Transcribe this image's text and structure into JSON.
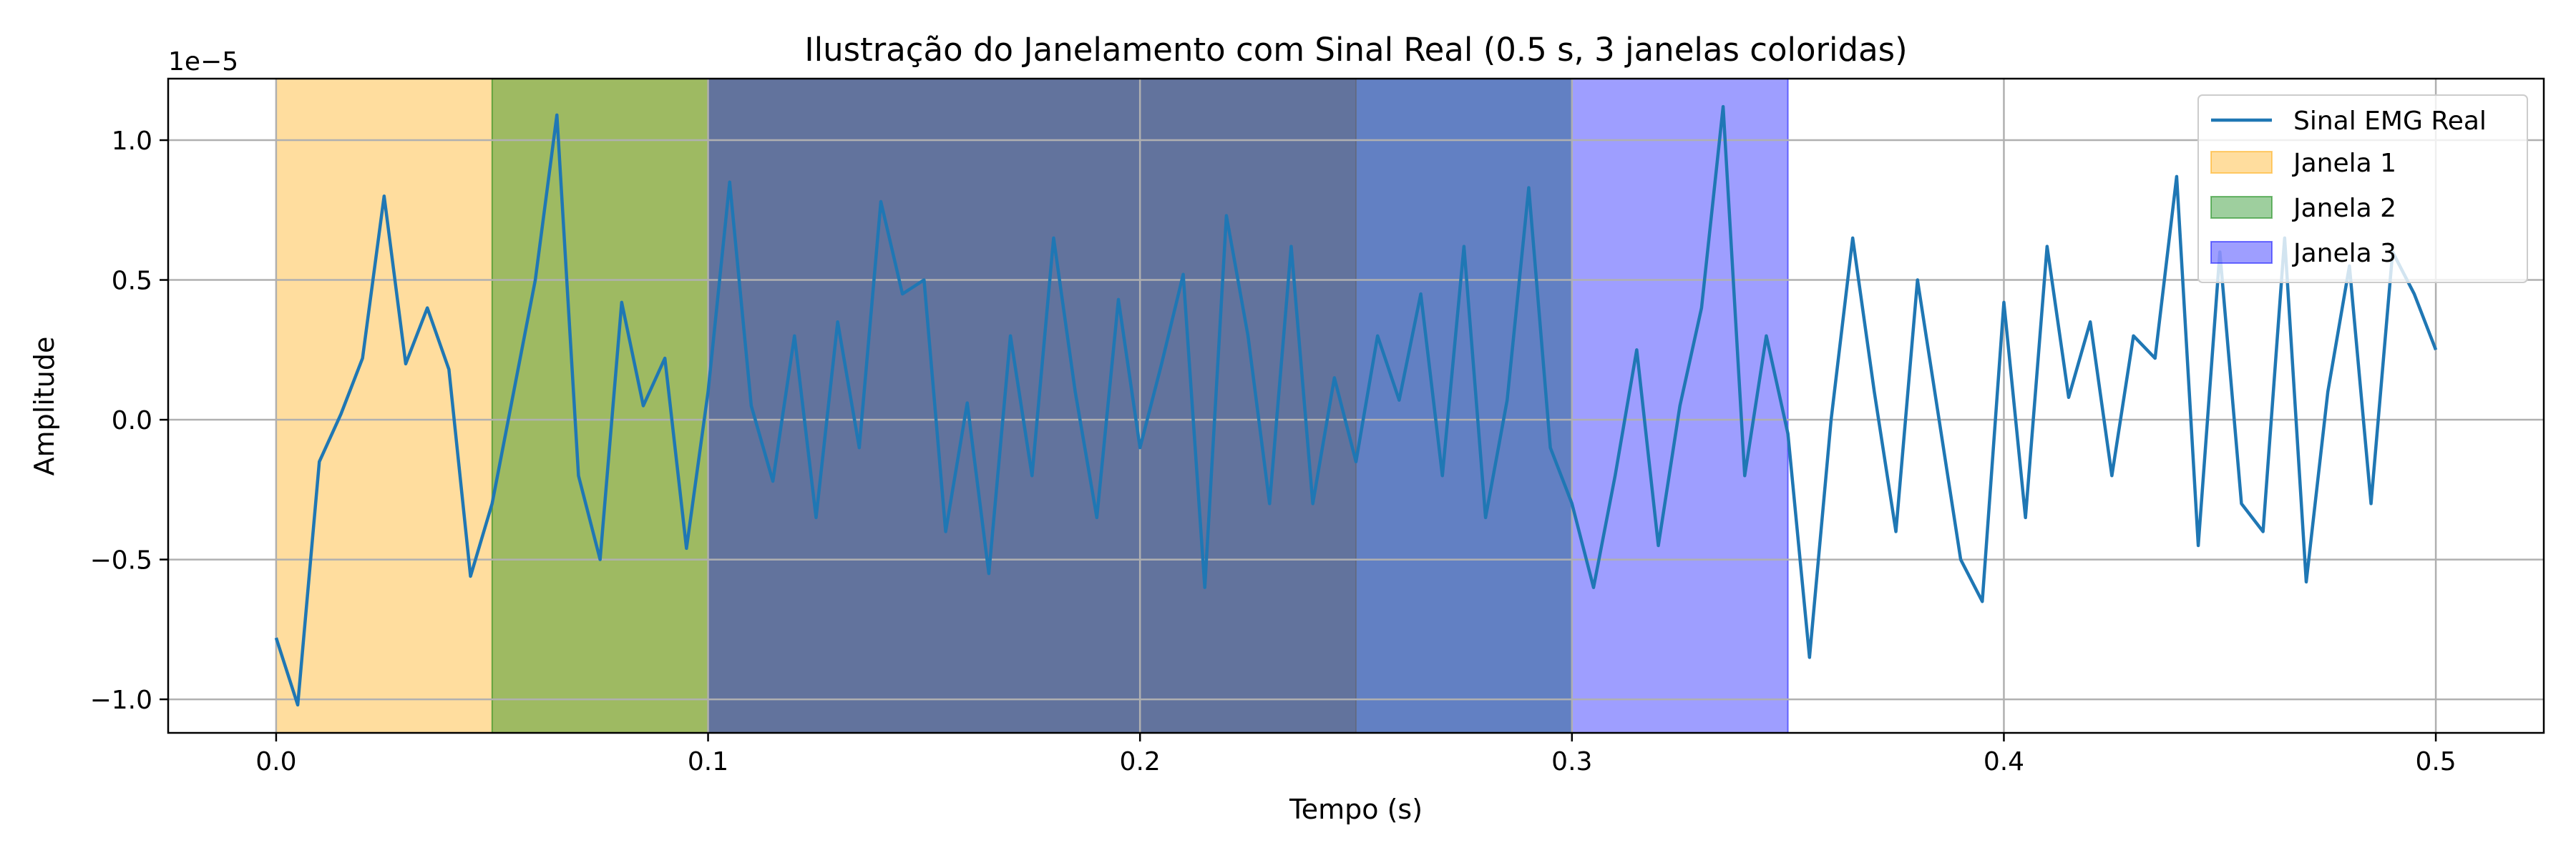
{
  "chart_data": {
    "type": "line",
    "title": "Ilustração do Janelamento com Sinal Real (0.5 s, 3 janelas coloridas)",
    "xlabel": "Tempo (s)",
    "ylabel": "Amplitude",
    "y_offset_label": "1e−5",
    "xlim": [
      -0.025,
      0.525
    ],
    "ylim": [
      -1.12,
      1.22
    ],
    "y_scale_factor": 1e-05,
    "x_ticks": [
      0.0,
      0.1,
      0.2,
      0.3,
      0.4,
      0.5
    ],
    "x_tick_labels": [
      "0.0",
      "0.1",
      "0.2",
      "0.3",
      "0.4",
      "0.5"
    ],
    "y_ticks": [
      -1.0,
      -0.5,
      0.0,
      0.5,
      1.0
    ],
    "y_tick_labels": [
      "−1.0",
      "−0.5",
      "0.0",
      "0.5",
      "1.0"
    ],
    "grid": true,
    "legend_position": "top-right",
    "legend": [
      "Sinal EMG Real",
      "Janela 1",
      "Janela 2",
      "Janela 3"
    ],
    "windows": [
      {
        "name": "Janela 1",
        "color": "#ffa500",
        "x": [
          0.0,
          0.25
        ]
      },
      {
        "name": "Janela 2",
        "color": "#008000",
        "x": [
          0.05,
          0.3
        ]
      },
      {
        "name": "Janela 3",
        "color": "#0000ff",
        "x": [
          0.1,
          0.35
        ]
      }
    ],
    "series": [
      {
        "name": "Sinal EMG Real",
        "color": "#1f77b4",
        "x": [
          0.0,
          0.005,
          0.01,
          0.015,
          0.02,
          0.025,
          0.03,
          0.035,
          0.04,
          0.045,
          0.05,
          0.055,
          0.06,
          0.065,
          0.07,
          0.075,
          0.08,
          0.085,
          0.09,
          0.095,
          0.1,
          0.105,
          0.11,
          0.115,
          0.12,
          0.125,
          0.13,
          0.135,
          0.14,
          0.145,
          0.15,
          0.155,
          0.16,
          0.165,
          0.17,
          0.175,
          0.18,
          0.185,
          0.19,
          0.195,
          0.2,
          0.205,
          0.21,
          0.215,
          0.22,
          0.225,
          0.23,
          0.235,
          0.24,
          0.245,
          0.25,
          0.255,
          0.26,
          0.265,
          0.27,
          0.275,
          0.28,
          0.285,
          0.29,
          0.295,
          0.3,
          0.305,
          0.31,
          0.315,
          0.32,
          0.325,
          0.33,
          0.335,
          0.34,
          0.345,
          0.35,
          0.355,
          0.36,
          0.365,
          0.37,
          0.375,
          0.38,
          0.385,
          0.39,
          0.395,
          0.4,
          0.405,
          0.41,
          0.415,
          0.42,
          0.425,
          0.43,
          0.435,
          0.44,
          0.445,
          0.45,
          0.455,
          0.46,
          0.465,
          0.47,
          0.475,
          0.48,
          0.485,
          0.49,
          0.495,
          0.5
        ],
        "values": [
          -0.78,
          -1.02,
          -0.15,
          0.02,
          0.22,
          0.8,
          0.2,
          0.4,
          0.18,
          -0.56,
          -0.3,
          0.1,
          0.5,
          1.09,
          -0.2,
          -0.5,
          0.42,
          0.05,
          0.22,
          -0.46,
          0.1,
          0.85,
          0.05,
          -0.22,
          0.3,
          -0.35,
          0.35,
          -0.1,
          0.78,
          0.45,
          0.5,
          -0.4,
          0.06,
          -0.55,
          0.3,
          -0.2,
          0.65,
          0.1,
          -0.35,
          0.43,
          -0.1,
          0.2,
          0.52,
          -0.6,
          0.73,
          0.3,
          -0.3,
          0.62,
          -0.3,
          0.15,
          -0.15,
          0.3,
          0.07,
          0.45,
          -0.2,
          0.62,
          -0.35,
          0.07,
          0.83,
          -0.1,
          -0.3,
          -0.6,
          -0.2,
          0.25,
          -0.45,
          0.05,
          0.4,
          1.12,
          -0.2,
          0.3,
          -0.05,
          -0.85,
          0.0,
          0.65,
          0.1,
          -0.4,
          0.5,
          0.0,
          -0.5,
          -0.65,
          0.42,
          -0.35,
          0.62,
          0.08,
          0.35,
          -0.2,
          0.3,
          0.22,
          0.87,
          -0.45,
          0.6,
          -0.3,
          -0.4,
          0.65,
          -0.58,
          0.1,
          0.55,
          -0.3,
          0.6,
          0.45,
          0.25
        ]
      }
    ]
  }
}
